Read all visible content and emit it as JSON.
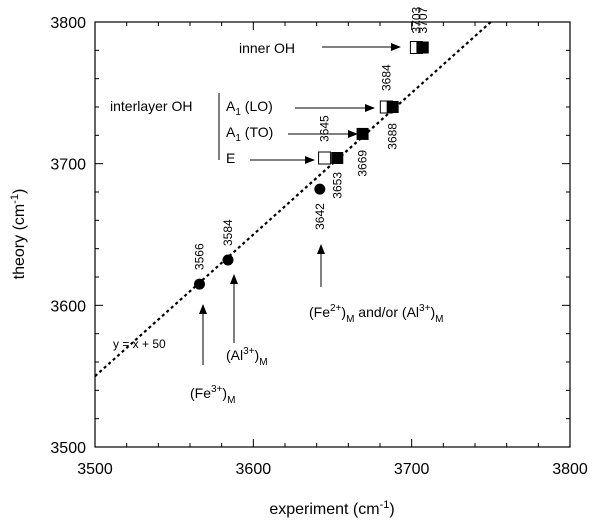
{
  "chart_data": {
    "type": "scatter",
    "xlabel": "experiment (cm",
    "xlabel_sup": "-1",
    "xlabel_end": ")",
    "ylabel": "theory (cm",
    "ylabel_sup": "-1",
    "ylabel_end": ")",
    "xlim": [
      3500,
      3800
    ],
    "ylim": [
      3500,
      3800
    ],
    "xticks": [
      3500,
      3600,
      3700,
      3800
    ],
    "yticks": [
      3500,
      3600,
      3700,
      3800
    ],
    "xtick_labels": [
      "3500",
      "3600",
      "3700",
      "3800"
    ],
    "ytick_labels": [
      "3500",
      "3600",
      "3700",
      "3800"
    ],
    "fit_line": {
      "label": "y = x + 50",
      "slope": 1,
      "intercept": 50,
      "x_range": [
        3500,
        3750
      ]
    },
    "points": [
      {
        "x": 3566,
        "y": 3615,
        "marker": "circle",
        "label": "3566"
      },
      {
        "x": 3584,
        "y": 3632,
        "marker": "circle",
        "label": "3584"
      },
      {
        "x": 3642,
        "y": 3682,
        "marker": "circle",
        "label": "3642"
      },
      {
        "x": 3645,
        "y": 3704,
        "marker": "open-square",
        "label": "3645"
      },
      {
        "x": 3653,
        "y": 3704,
        "marker": "filled-square",
        "label": "3653"
      },
      {
        "x": 3669,
        "y": 3721,
        "marker": "filled-square",
        "label": "3669"
      },
      {
        "x": 3684,
        "y": 3740,
        "marker": "open-square",
        "label": "3684"
      },
      {
        "x": 3688,
        "y": 3740,
        "marker": "filled-square",
        "label": "3688"
      },
      {
        "x": 3703,
        "y": 3782,
        "marker": "half-square",
        "label": "3703"
      },
      {
        "x": 3707,
        "y": 3782,
        "marker": "filled-square",
        "label": "3707"
      }
    ],
    "annotations": {
      "inner_oh": "inner OH",
      "interlayer_oh": "interlayer OH",
      "a1_lo": "A",
      "a1_lo_sub": "1",
      "a1_lo_rest": " (LO)",
      "a1_to": "A",
      "a1_to_sub": "1",
      "a1_to_rest": " (TO)",
      "e_mode": "E",
      "fe3_base": "(Fe",
      "fe3_sup": "3+",
      "fe3_close": ")",
      "fe3_sub": "M",
      "al3_base": "(Al",
      "al3_sup": "3+",
      "al3_close": ")",
      "al3_sub": "M",
      "fe2_base": "(Fe",
      "fe2_sup": "2+",
      "fe2_close": ")",
      "fe2_sub": "M",
      "andor": " and/or ",
      "al3b_base": "(Al",
      "al3b_sup": "3+",
      "al3b_close": ")",
      "al3b_sub": "M"
    }
  }
}
